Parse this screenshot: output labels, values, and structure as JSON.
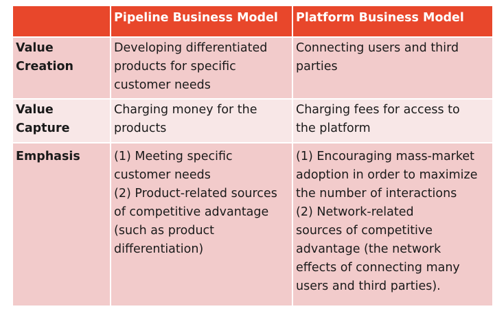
{
  "table": {
    "header": {
      "corner": "",
      "pipeline": "Pipeline Business Model",
      "platform": "Platform Business Model"
    },
    "rows": [
      {
        "label": "Value\nCreation",
        "pipeline": "Developing differentiated\nproducts for specific\ncustomer needs",
        "platform": "Connecting users and third\nparties"
      },
      {
        "label": "Value Capture",
        "pipeline": "Charging money for the\nproducts",
        "platform": "Charging fees for access to\nthe platform"
      },
      {
        "label": "Emphasis",
        "pipeline": "(1) Meeting specific\ncustomer needs\n(2) Product-related sources\nof competitive advantage\n(such as product\ndifferentiation)",
        "platform": "(1) Encouraging mass-market\nadoption in order to maximize\nthe number of interactions\n(2) Network-related\nsources of competitive\nadvantage (the network\neffects of connecting many\nusers and third parties)."
      }
    ]
  },
  "colors": {
    "header_bg": "#e8472b",
    "row_dark_bg": "#f2cbcb",
    "row_light_bg": "#f8e7e7",
    "header_text": "#ffffff",
    "body_text": "#1a1a1a"
  }
}
